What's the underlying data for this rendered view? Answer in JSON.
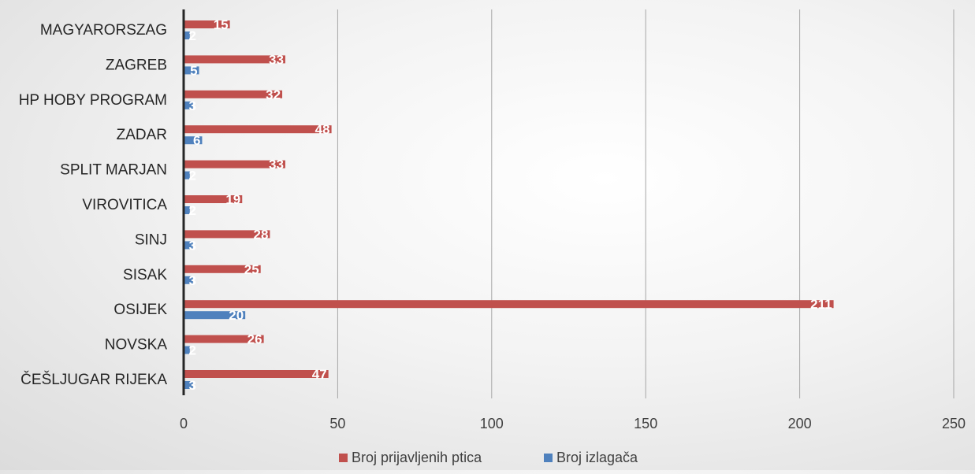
{
  "chart_data": {
    "type": "bar",
    "orientation": "horizontal",
    "categories": [
      "MAGYARORSZAG",
      "ZAGREB",
      "HP HOBY PROGRAM",
      "ZADAR",
      "SPLIT MARJAN",
      "VIROVITICA",
      "SINJ",
      "SISAK",
      "OSIJEK",
      "NOVSKA",
      "ČEŠLJUGAR RIJEKA"
    ],
    "series": [
      {
        "name": "Broj prijavljenih ptica",
        "color": "#c0504d",
        "values": [
          15,
          33,
          32,
          48,
          33,
          19,
          28,
          25,
          211,
          26,
          47
        ]
      },
      {
        "name": "Broj izlagača",
        "color": "#4f81bd",
        "values": [
          2,
          5,
          3,
          6,
          2,
          2,
          3,
          3,
          20,
          2,
          3
        ]
      }
    ],
    "xlim": [
      0,
      250
    ],
    "xticks": [
      "0",
      "50",
      "100",
      "150",
      "200",
      "250"
    ],
    "grid": "vertical",
    "legend": "bottom",
    "data_labels": true
  }
}
